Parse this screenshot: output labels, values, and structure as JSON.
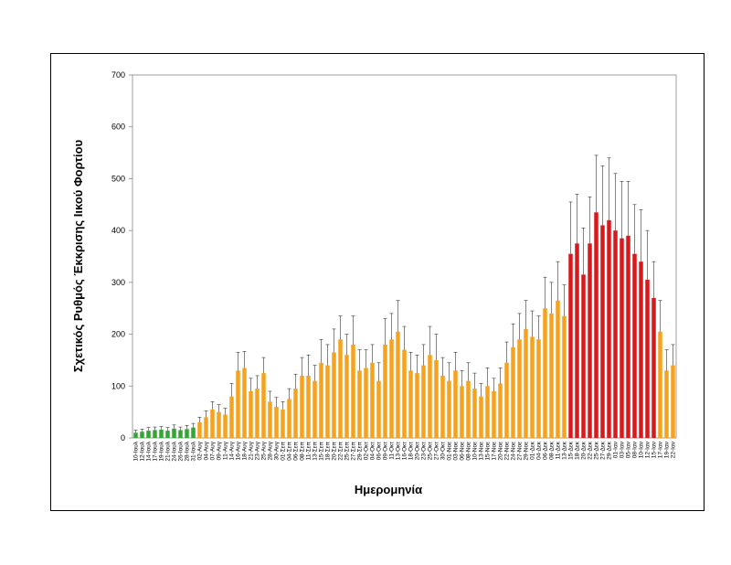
{
  "chart_data": {
    "type": "bar",
    "ylabel": "Σχετικός Ρυθμός Έκκρισης Ιικού Φορτίου",
    "xlabel": "Ημερομηνία",
    "categories": [
      "10-Ιουλ",
      "12-Ιουλ",
      "14-Ιουλ",
      "17-Ιουλ",
      "19-Ιουλ",
      "21-Ιουλ",
      "24-Ιουλ",
      "26-Ιουλ",
      "28-Ιουλ",
      "31-Ιουλ",
      "02-Αυγ",
      "04-Αυγ",
      "07-Αυγ",
      "09-Αυγ",
      "11-Αυγ",
      "14-Αυγ",
      "16-Αυγ",
      "18-Αυγ",
      "21-Αυγ",
      "23-Αυγ",
      "25-Αυγ",
      "28-Αυγ",
      "30-Αυγ",
      "01-Σεπ",
      "04-Σεπ",
      "06-Σεπ",
      "08-Σεπ",
      "11-Σεπ",
      "13-Σεπ",
      "15-Σεπ",
      "18-Σεπ",
      "20-Σεπ",
      "22-Σεπ",
      "25-Σεπ",
      "27-Σεπ",
      "29-Σεπ",
      "02-Οκτ",
      "04-Οκτ",
      "06-Οκτ",
      "09-Οκτ",
      "11-Οκτ",
      "13-Οκτ",
      "16-Οκτ",
      "18-Οκτ",
      "20-Οκτ",
      "23-Οκτ",
      "25-Οκτ",
      "27-Οκτ",
      "30-Οκτ",
      "01-Νοε",
      "03-Νοε",
      "06-Νοε",
      "08-Νοε",
      "10-Νοε",
      "13-Νοε",
      "15-Νοε",
      "17-Νοε",
      "20-Νοε",
      "22-Νοε",
      "24-Νοε",
      "27-Νοε",
      "29-Νοε",
      "01-Δεκ",
      "04-Δεκ",
      "06-Δεκ",
      "08-Δεκ",
      "11-Δεκ",
      "13-Δεκ",
      "15-Δεκ",
      "18-Δεκ",
      "20-Δεκ",
      "22-Δεκ",
      "25-Δεκ",
      "27-Δεκ",
      "29-Δεκ",
      "01-Ιαν",
      "03-Ιαν",
      "05-Ιαν",
      "08-Ιαν",
      "10-Ιαν",
      "12-Ιαν",
      "15-Ιαν",
      "17-Ιαν",
      "19-Ιαν",
      "22-Ιαν"
    ],
    "values": [
      10,
      12,
      14,
      15,
      16,
      14,
      18,
      15,
      17,
      20,
      30,
      40,
      55,
      50,
      45,
      80,
      130,
      135,
      90,
      95,
      125,
      70,
      60,
      55,
      75,
      95,
      120,
      120,
      110,
      145,
      140,
      165,
      190,
      160,
      180,
      130,
      135,
      145,
      110,
      180,
      190,
      205,
      170,
      130,
      125,
      140,
      160,
      150,
      120,
      110,
      130,
      100,
      110,
      95,
      80,
      100,
      90,
      105,
      145,
      175,
      190,
      210,
      195,
      190,
      250,
      240,
      265,
      235,
      355,
      375,
      315,
      375,
      435,
      410,
      420,
      400,
      385,
      390,
      355,
      340,
      305,
      270,
      205,
      130,
      140
    ],
    "errors": [
      5,
      5,
      6,
      6,
      6,
      6,
      7,
      6,
      7,
      8,
      10,
      12,
      15,
      14,
      12,
      25,
      35,
      32,
      25,
      25,
      30,
      20,
      18,
      15,
      20,
      28,
      35,
      40,
      30,
      45,
      40,
      45,
      45,
      40,
      55,
      40,
      35,
      35,
      35,
      50,
      50,
      60,
      45,
      35,
      35,
      40,
      55,
      50,
      35,
      35,
      35,
      30,
      35,
      30,
      25,
      35,
      25,
      30,
      40,
      45,
      50,
      55,
      50,
      45,
      60,
      60,
      75,
      60,
      100,
      95,
      90,
      90,
      110,
      115,
      120,
      110,
      110,
      105,
      95,
      100,
      95,
      70,
      60,
      40,
      40
    ],
    "colors": [
      "#33a532",
      "#33a532",
      "#33a532",
      "#33a532",
      "#33a532",
      "#33a532",
      "#33a532",
      "#33a532",
      "#33a532",
      "#33a532",
      "#f5a31e",
      "#f5a31e",
      "#f5a31e",
      "#f5a31e",
      "#f5a31e",
      "#f5a31e",
      "#f5a31e",
      "#f5a31e",
      "#f5a31e",
      "#f5a31e",
      "#f5a31e",
      "#f5a31e",
      "#f5a31e",
      "#f5a31e",
      "#f5a31e",
      "#f5a31e",
      "#f5a31e",
      "#f5a31e",
      "#f5a31e",
      "#f5a31e",
      "#f5a31e",
      "#f5a31e",
      "#f5a31e",
      "#f5a31e",
      "#f5a31e",
      "#f5a31e",
      "#f5a31e",
      "#f5a31e",
      "#f5a31e",
      "#f5a31e",
      "#f5a31e",
      "#f5a31e",
      "#f5a31e",
      "#f5a31e",
      "#f5a31e",
      "#f5a31e",
      "#f5a31e",
      "#f5a31e",
      "#f5a31e",
      "#f5a31e",
      "#f5a31e",
      "#f5a31e",
      "#f5a31e",
      "#f5a31e",
      "#f5a31e",
      "#f5a31e",
      "#f5a31e",
      "#f5a31e",
      "#f5a31e",
      "#f5a31e",
      "#f5a31e",
      "#f5a31e",
      "#f5a31e",
      "#f5a31e",
      "#f5a31e",
      "#f5a31e",
      "#f5a31e",
      "#f5a31e",
      "#d7191c",
      "#d7191c",
      "#d7191c",
      "#d7191c",
      "#d7191c",
      "#d7191c",
      "#d7191c",
      "#d7191c",
      "#d7191c",
      "#d7191c",
      "#d7191c",
      "#d7191c",
      "#d7191c",
      "#d7191c",
      "#f5a31e",
      "#f5a31e",
      "#f5a31e"
    ],
    "ylim": [
      0,
      700
    ],
    "yticks": [
      0,
      100,
      200,
      300,
      400,
      500,
      600,
      700
    ]
  }
}
